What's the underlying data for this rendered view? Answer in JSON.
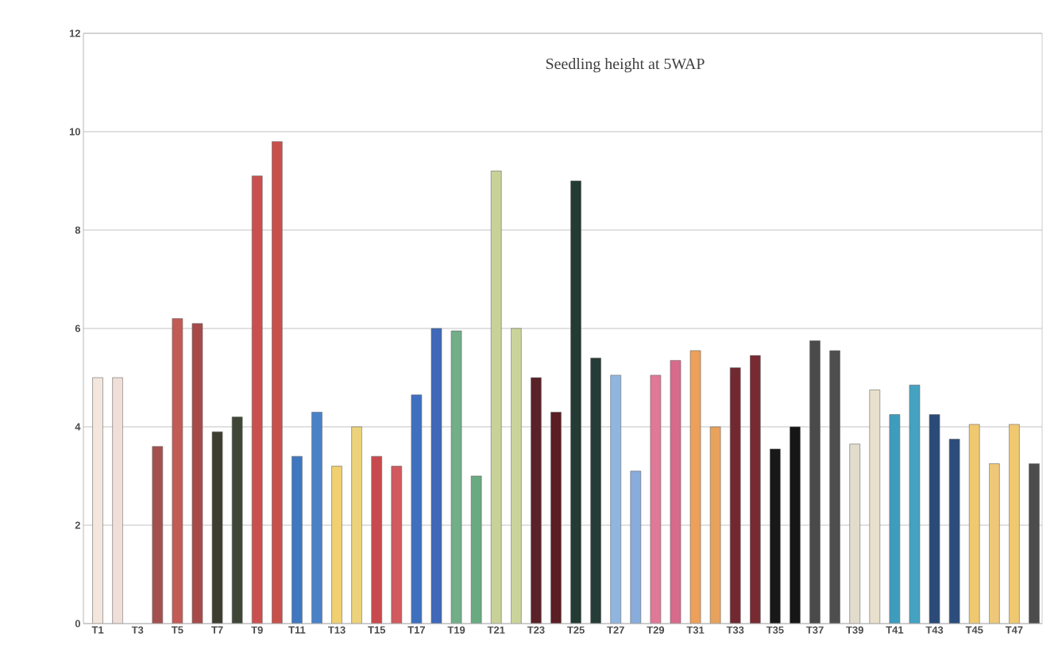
{
  "chart_data": {
    "type": "bar",
    "title": "Seedling height at 5WAP",
    "categories": [
      "T1",
      null,
      "T3",
      null,
      "T5",
      null,
      "T7",
      null,
      "T9",
      null,
      "T11",
      null,
      "T13",
      null,
      "T15",
      null,
      "T17",
      null,
      "T19",
      null,
      "T21",
      null,
      "T23",
      null,
      "T25",
      null,
      "T27",
      null,
      "T29",
      null,
      "T31",
      null,
      "T33",
      null,
      "T35",
      null,
      "T37",
      null,
      "T39",
      null,
      "T41",
      null,
      "T43",
      null,
      "T45",
      null,
      "T47",
      null
    ],
    "values": [
      5.0,
      5.0,
      null,
      3.6,
      6.2,
      6.1,
      3.9,
      4.2,
      9.1,
      9.8,
      3.4,
      4.3,
      3.2,
      4.0,
      3.4,
      3.2,
      4.65,
      6.0,
      5.95,
      3.0,
      9.2,
      6.0,
      5.0,
      4.3,
      9.0,
      5.4,
      5.05,
      3.1,
      5.05,
      5.35,
      5.55,
      4.0,
      5.2,
      5.45,
      3.55,
      4.0,
      5.75,
      5.55,
      3.65,
      4.75,
      4.25,
      4.85,
      4.25,
      3.75,
      4.05,
      3.25,
      4.05,
      3.25
    ],
    "colors": [
      "#f3e6dc",
      "#f0dfd8",
      "#ffffff",
      "#a4504e",
      "#c25a55",
      "#a84a4a",
      "#3d3d30",
      "#3f4636",
      "#c9504e",
      "#c8504c",
      "#3f78c0",
      "#4a82c8",
      "#f0d070",
      "#ecd27a",
      "#c84a4e",
      "#d05a5e",
      "#3f70c0",
      "#3f68b8",
      "#72ae88",
      "#6aaa80",
      "#c8d298",
      "#cad49a",
      "#5a2228",
      "#5a1e24",
      "#243a34",
      "#263c36",
      "#90b6e0",
      "#88acdc",
      "#e07898",
      "#d86a8c",
      "#eca05a",
      "#e8a25c",
      "#722830",
      "#782a32",
      "#181818",
      "#161616",
      "#4a4a4a",
      "#4e4e4e",
      "#e2dccc",
      "#e8e0cc",
      "#3e9cbc",
      "#44a2c2",
      "#2a4a78",
      "#2c4c7c",
      "#f0c870",
      "#eec878",
      "#f0c870",
      "#4c4c4c"
    ],
    "ylim": [
      0,
      12
    ],
    "yticks": [
      0,
      2,
      4,
      6,
      8,
      10,
      12
    ],
    "grid": "y"
  }
}
